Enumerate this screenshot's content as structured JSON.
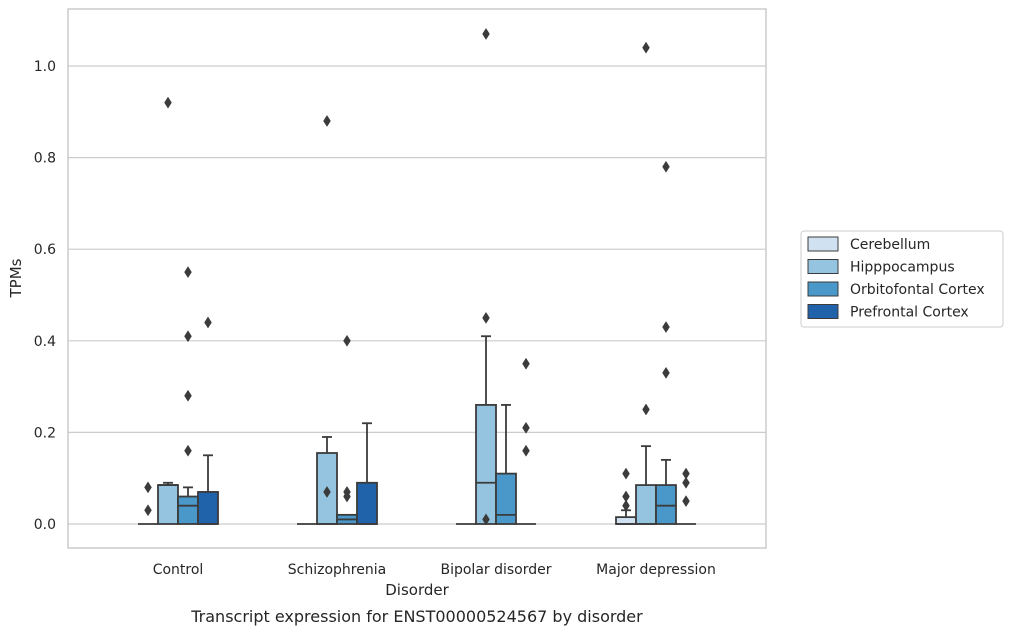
{
  "caption": "Transcript expression for ENST00000524567 by disorder",
  "chart_data": {
    "type": "box",
    "xlabel": "Disorder",
    "ylabel": "TPMs",
    "ylim": [
      -0.05,
      1.13
    ],
    "yticks": [
      0.0,
      0.2,
      0.4,
      0.6,
      0.8,
      1.0
    ],
    "ytick_labels": [
      "0.0",
      "0.2",
      "0.4",
      "0.6",
      "0.8",
      "1.0"
    ],
    "grid": "horizontal",
    "legend_position": "right",
    "categories": [
      "Control",
      "Schizophrenia",
      "Bipolar disorder",
      "Major depression"
    ],
    "series": [
      {
        "name": "Cerebellum",
        "color": "#d0e1f2",
        "boxes": [
          {
            "min": 0,
            "q1": 0,
            "median": 0,
            "q3": 0,
            "max": 0,
            "outliers": [
              0.08,
              0.03
            ]
          },
          {
            "min": 0,
            "q1": 0,
            "median": 0,
            "q3": 0,
            "max": 0,
            "outliers": []
          },
          {
            "min": 0,
            "q1": 0,
            "median": 0,
            "q3": 0,
            "max": 0,
            "outliers": []
          },
          {
            "min": 0,
            "q1": 0,
            "median": 0,
            "q3": 0.015,
            "max": 0.03,
            "outliers": [
              0.11,
              0.06,
              0.04
            ]
          }
        ]
      },
      {
        "name": "Hipppocampus",
        "color": "#94c4df",
        "boxes": [
          {
            "min": 0,
            "q1": 0,
            "median": 0.085,
            "q3": 0.085,
            "max": 0.09,
            "outliers": [
              0.92
            ]
          },
          {
            "min": 0,
            "q1": 0,
            "median": 0,
            "q3": 0.155,
            "max": 0.19,
            "outliers": [
              0.07,
              0.88
            ]
          },
          {
            "min": 0,
            "q1": 0,
            "median": 0.09,
            "q3": 0.26,
            "max": 0.41,
            "outliers": [
              0.01,
              0.45,
              1.07
            ]
          },
          {
            "min": 0,
            "q1": 0,
            "median": 0,
            "q3": 0.085,
            "max": 0.17,
            "outliers": [
              0.25,
              1.04
            ]
          }
        ]
      },
      {
        "name": "Orbitofontal Cortex",
        "color": "#4a98c9",
        "boxes": [
          {
            "min": 0,
            "q1": 0,
            "median": 0.04,
            "q3": 0.06,
            "max": 0.08,
            "outliers": [
              0.41,
              0.28,
              0.55,
              0.16
            ]
          },
          {
            "min": 0,
            "q1": 0,
            "median": 0.01,
            "q3": 0.02,
            "max": 0.02,
            "outliers": [
              0.4,
              0.07,
              0.06
            ]
          },
          {
            "min": 0,
            "q1": 0,
            "median": 0.02,
            "q3": 0.11,
            "max": 0.26,
            "outliers": []
          },
          {
            "min": 0,
            "q1": 0,
            "median": 0.04,
            "q3": 0.085,
            "max": 0.14,
            "outliers": [
              0.78,
              0.43,
              0.33
            ]
          }
        ]
      },
      {
        "name": "Prefrontal Cortex",
        "color": "#2163aa",
        "boxes": [
          {
            "min": 0,
            "q1": 0,
            "median": 0,
            "q3": 0.07,
            "max": 0.15,
            "outliers": [
              0.44
            ]
          },
          {
            "min": 0,
            "q1": 0,
            "median": 0,
            "q3": 0.09,
            "max": 0.22,
            "outliers": []
          },
          {
            "min": 0,
            "q1": 0,
            "median": 0,
            "q3": 0,
            "max": 0,
            "outliers": [
              0.35,
              0.21,
              0.16
            ]
          },
          {
            "min": 0,
            "q1": 0,
            "median": 0,
            "q3": 0,
            "max": 0,
            "outliers": [
              0.11,
              0.09,
              0.05
            ]
          }
        ]
      }
    ]
  }
}
